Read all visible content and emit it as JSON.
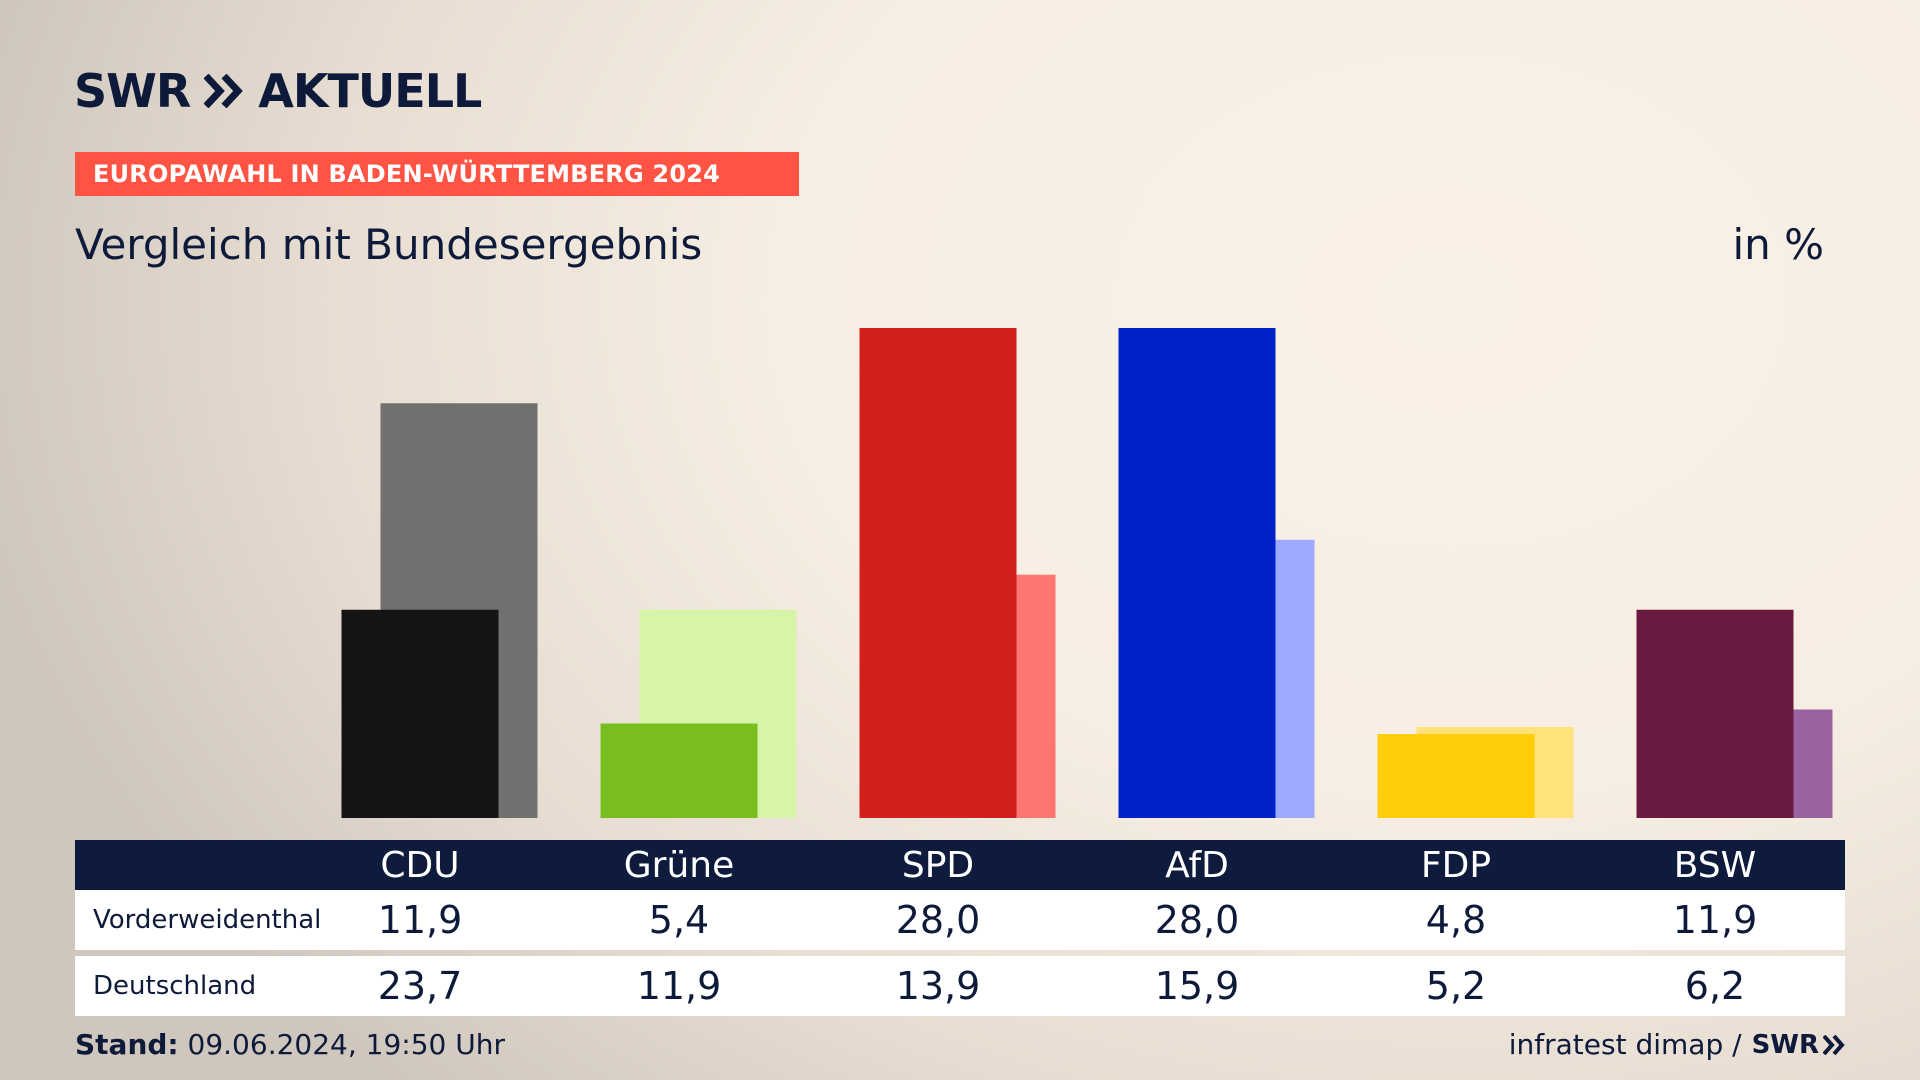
{
  "header": {
    "logo_left": "SWR",
    "logo_right": "AKTUELL",
    "banner": "EUROPAWAHL IN BADEN-WÜRTTEMBERG 2024",
    "subtitle": "Vergleich mit Bundesergebnis",
    "unit": "in %"
  },
  "footer": {
    "stand_label": "Stand:",
    "stand_value": "09.06.2024, 19:50 Uhr",
    "source": "infratest dimap /",
    "source_logo": "SWR"
  },
  "table": {
    "row_labels": [
      "Vorderweidenthal",
      "Deutschland"
    ]
  },
  "chart_data": {
    "type": "bar",
    "categories": [
      "CDU",
      "Grüne",
      "SPD",
      "AfD",
      "FDP",
      "BSW"
    ],
    "series": [
      {
        "name": "Vorderweidenthal",
        "values": [
          11.9,
          5.4,
          28.0,
          28.0,
          4.8,
          11.9
        ],
        "labels": [
          "11,9",
          "5,4",
          "28,0",
          "28,0",
          "4,8",
          "11,9"
        ],
        "colors": [
          "#141414",
          "#78be1e",
          "#d41f1f",
          "#0020c8",
          "#ffcd0a",
          "#6a1a40"
        ]
      },
      {
        "name": "Deutschland",
        "values": [
          23.7,
          11.9,
          13.9,
          15.9,
          5.2,
          6.2
        ],
        "labels": [
          "23,7",
          "11,9",
          "13,9",
          "15,9",
          "5,2",
          "6,2"
        ],
        "colors": [
          "#72706e",
          "#d6f5a8",
          "#ff7570",
          "#9eaaff",
          "#ffe27a",
          "#9b62a0"
        ]
      }
    ],
    "ylim": [
      0,
      28.0
    ]
  }
}
